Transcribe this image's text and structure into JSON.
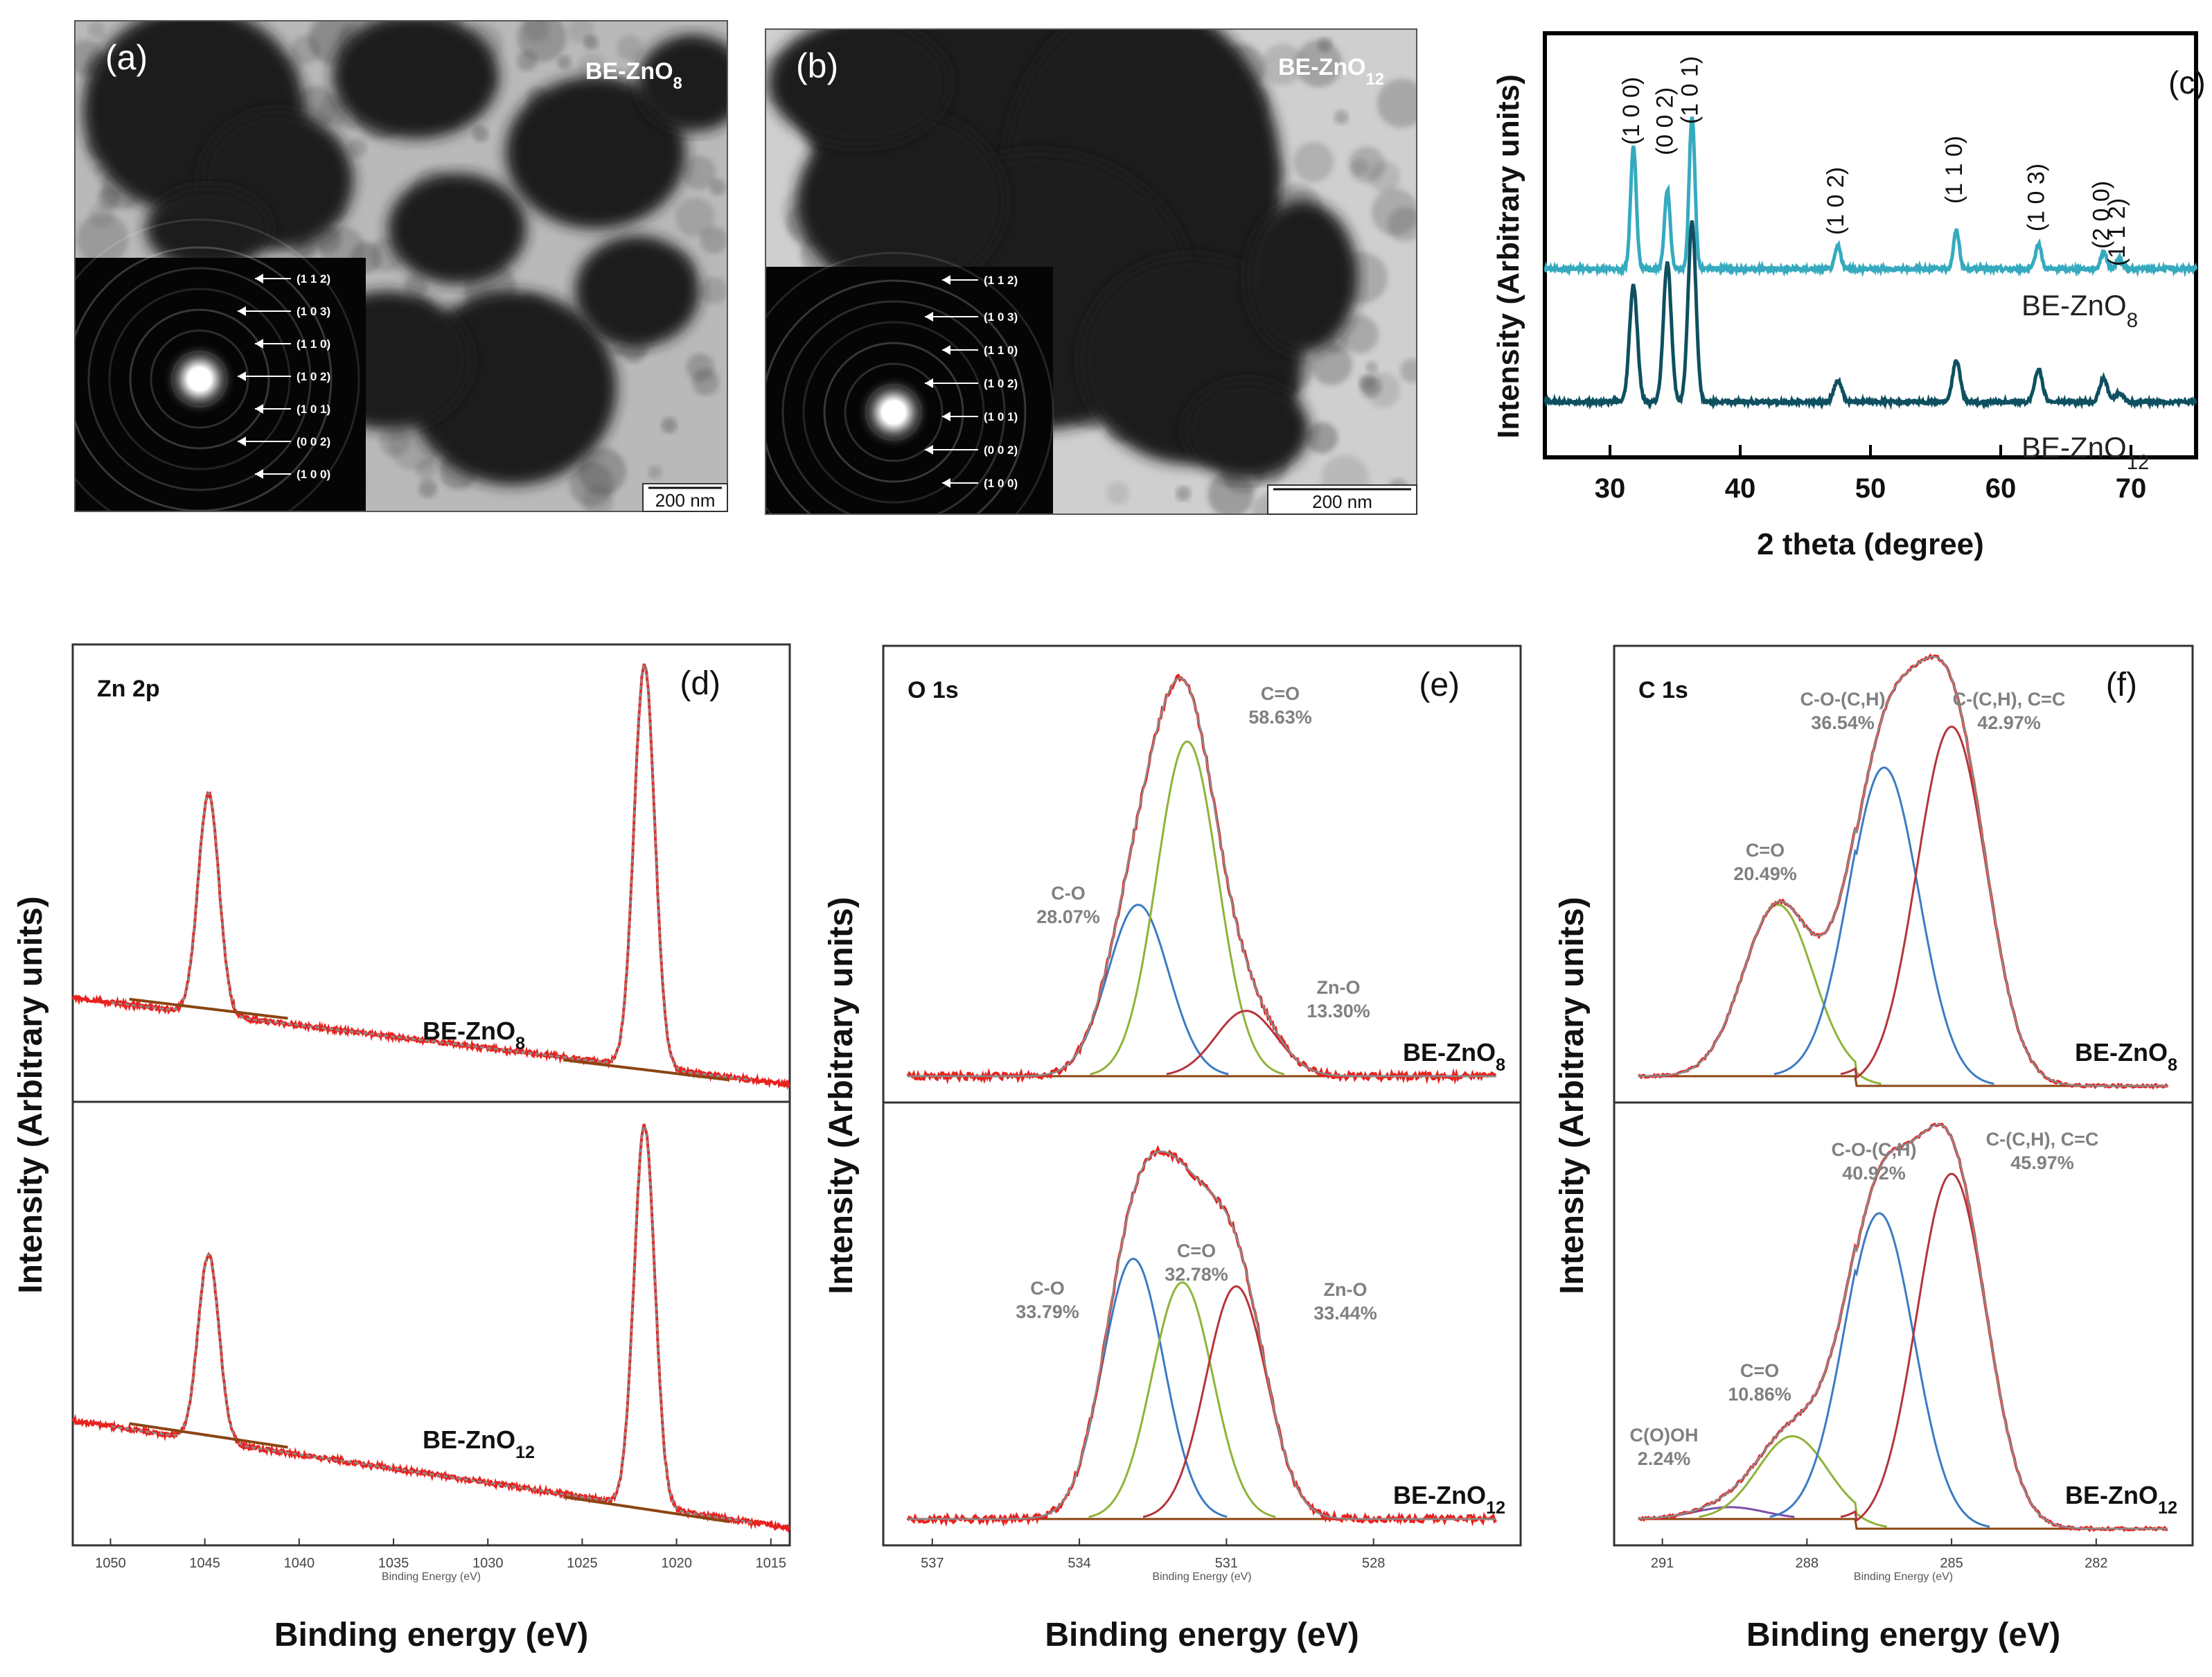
{
  "colors": {
    "raw": "#e8231f",
    "envelope": "#8a8a8a",
    "baseline": "#8b4513",
    "green": "#8fb339",
    "blue": "#3b7bc4",
    "darkred": "#b5343c",
    "purple": "#7b4fa8",
    "xrd_top": "#35aabf",
    "xrd_bottom": "#0e5060",
    "grey_text": "#808080"
  },
  "tem": [
    {
      "panel": "(a)",
      "sample": "BE-ZnO",
      "sample_sub": "8",
      "scale": "200 nm",
      "saed": [
        "(1 1 2)",
        "(1 0 3)",
        "(1 1 0)",
        "(1 0 2)",
        "(1 0 1)",
        "(0 0 2)",
        "(1 0 0)"
      ]
    },
    {
      "panel": "(b)",
      "sample": "BE-ZnO",
      "sample_sub": "12",
      "scale": "200 nm",
      "saed": [
        "(1 1 2)",
        "(1 0 3)",
        "(1 1 0)",
        "(1 0 2)",
        "(1 0 1)",
        "(0 0 2)",
        "(1 0 0)"
      ]
    }
  ],
  "chart_data": [
    {
      "panel": "(c)",
      "type": "line",
      "xlabel": "2 theta (degree)",
      "ylabel": "Intensity (Arbitrary units)",
      "xlim": [
        25,
        75
      ],
      "xticks": [
        30,
        40,
        50,
        60,
        70
      ],
      "peak_labels": [
        {
          "x": 31.8,
          "label": "(1 0 0)"
        },
        {
          "x": 34.4,
          "label": "(0 0 2)"
        },
        {
          "x": 36.3,
          "label": "(1 0 1)"
        },
        {
          "x": 47.5,
          "label": "(1 0 2)"
        },
        {
          "x": 56.6,
          "label": "(1 1 0)"
        },
        {
          "x": 62.9,
          "label": "(1 0 3)"
        },
        {
          "x": 67.9,
          "label": "(2 0 0)"
        },
        {
          "x": 69.1,
          "label": "(1 1 2)"
        }
      ],
      "series": [
        {
          "name": "BE-ZnO",
          "sub": "8",
          "peaks_x": [
            31.8,
            34.4,
            36.3,
            47.5,
            56.6,
            62.9,
            67.9,
            69.1
          ],
          "peaks_h": [
            0.95,
            0.62,
            1.2,
            0.18,
            0.3,
            0.2,
            0.14,
            0.08
          ]
        },
        {
          "name": "BE-ZnO",
          "sub": "12",
          "peaks_x": [
            31.8,
            34.4,
            36.3,
            47.5,
            56.6,
            62.9,
            67.9,
            69.1
          ],
          "peaks_h": [
            1.0,
            1.2,
            1.55,
            0.18,
            0.35,
            0.28,
            0.2,
            0.08
          ]
        }
      ]
    },
    {
      "panel": "(d)",
      "type": "line",
      "title": "Zn 2p",
      "xlabel": "Binding energy (eV)",
      "small_xlabel": "Binding Energy (eV)",
      "ylabel": "Intensity (Arbitrary units)",
      "xlim": [
        1052,
        1014
      ],
      "xticks": [
        1050,
        1045,
        1040,
        1035,
        1030,
        1025,
        1020,
        1015
      ],
      "series": [
        {
          "name": "BE-ZnO",
          "sub": "8",
          "peaks_x": [
            1044.8,
            1021.7
          ],
          "peaks_h": [
            0.55,
            1.0
          ]
        },
        {
          "name": "BE-ZnO",
          "sub": "12",
          "peaks_x": [
            1044.8,
            1021.7
          ],
          "peaks_h": [
            0.48,
            0.98
          ]
        }
      ]
    },
    {
      "panel": "(e)",
      "type": "line",
      "title": "O 1s",
      "xlabel": "Binding energy (eV)",
      "small_xlabel": "Binding Energy (eV)",
      "ylabel": "Intensity (Arbitrary units)",
      "xlim": [
        538,
        525
      ],
      "xticks": [
        537,
        534,
        531,
        528
      ],
      "subpanels": [
        {
          "sample": "BE-ZnO",
          "sub": "8",
          "components": [
            {
              "name": "C-O",
              "pct": "28.07%",
              "center": 532.8,
              "height": 0.42,
              "color": "blue"
            },
            {
              "name": "C=O",
              "pct": "58.63%",
              "center": 531.8,
              "height": 0.82,
              "color": "green"
            },
            {
              "name": "Zn-O",
              "pct": "13.30%",
              "center": 530.6,
              "height": 0.16,
              "color": "darkred"
            }
          ]
        },
        {
          "sample": "BE-ZnO",
          "sub": "12",
          "components": [
            {
              "name": "C-O",
              "pct": "33.79%",
              "center": 532.9,
              "height": 0.66,
              "color": "blue"
            },
            {
              "name": "C=O",
              "pct": "32.78%",
              "center": 531.9,
              "height": 0.6,
              "color": "green"
            },
            {
              "name": "Zn-O",
              "pct": "33.44%",
              "center": 530.8,
              "height": 0.59,
              "color": "darkred"
            }
          ]
        }
      ]
    },
    {
      "panel": "(f)",
      "type": "line",
      "title": "C 1s",
      "xlabel": "Binding energy (eV)",
      "small_xlabel": "Binding Energy (eV)",
      "ylabel": "Intensity (Arbitrary units)",
      "xlim": [
        292,
        280
      ],
      "xticks": [
        291,
        288,
        285,
        282
      ],
      "subpanels": [
        {
          "sample": "BE-ZnO",
          "sub": "8",
          "components": [
            {
              "name": "C=O",
              "pct": "20.49%",
              "center": 288.6,
              "height": 0.42,
              "color": "green"
            },
            {
              "name": "C-O-(C,H)",
              "pct": "36.54%",
              "center": 286.4,
              "height": 0.78,
              "color": "blue"
            },
            {
              "name": "C-(C,H), C=C",
              "pct": "42.97%",
              "center": 285.0,
              "height": 0.88,
              "color": "darkred"
            }
          ]
        },
        {
          "sample": "BE-ZnO",
          "sub": "12",
          "components": [
            {
              "name": "C(O)OH",
              "pct": "2.24%",
              "center": 289.6,
              "height": 0.03,
              "color": "purple"
            },
            {
              "name": "C=O",
              "pct": "10.86%",
              "center": 288.3,
              "height": 0.21,
              "color": "green"
            },
            {
              "name": "C-O-(C,H)",
              "pct": "40.92%",
              "center": 286.5,
              "height": 0.8,
              "color": "blue"
            },
            {
              "name": "C-(C,H), C=C",
              "pct": "45.97%",
              "center": 285.0,
              "height": 0.9,
              "color": "darkred"
            }
          ]
        }
      ]
    }
  ]
}
